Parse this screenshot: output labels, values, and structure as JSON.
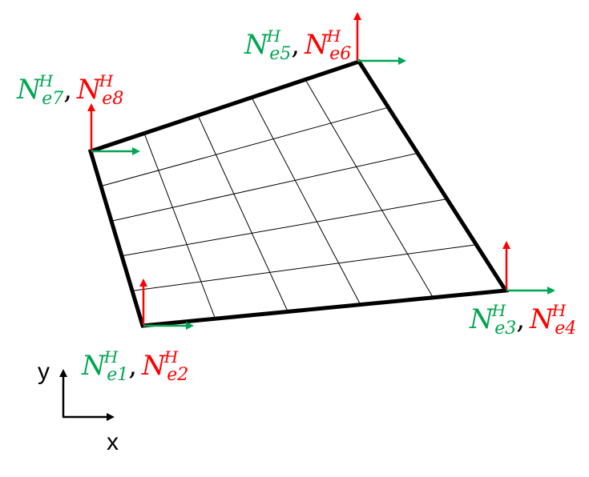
{
  "colors": {
    "green": "#00a651",
    "red": "#ff0000",
    "black": "#000000",
    "mesh": "#000000"
  },
  "mesh": {
    "subdivisions": 5
  },
  "nodes": [
    {
      "id": "node-1",
      "green_sub": "e1",
      "red_sub": "e2",
      "sup": "H"
    },
    {
      "id": "node-3",
      "green_sub": "e3",
      "red_sub": "e4",
      "sup": "H"
    },
    {
      "id": "node-5",
      "green_sub": "e5",
      "red_sub": "e6",
      "sup": "H"
    },
    {
      "id": "node-7",
      "green_sub": "e7",
      "red_sub": "e8",
      "sup": "H"
    }
  ],
  "label_base": "N",
  "separator": ",",
  "axes": {
    "x": "x",
    "y": "y"
  }
}
